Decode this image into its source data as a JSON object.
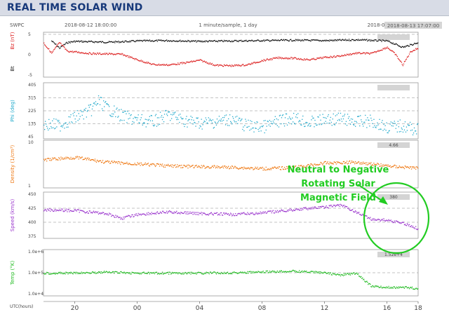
{
  "page": {
    "title": "REAL TIME SOLAR WIND"
  },
  "header": {
    "source": "SWPC",
    "start_time": "2018-08-12 18:00:00",
    "cadence": "1 minute/sample, 1 day",
    "end_time": "2018-08-13 18:00:00",
    "current_time": "2018-08-13 17:07:00"
  },
  "annotation": {
    "lines": [
      "Neutral to Negative",
      "Rotating Solar",
      "Magnetic Field"
    ],
    "color": "#22cc22"
  },
  "x_axis": {
    "label": "UTC(hours)",
    "ticks": [
      "20",
      "00",
      "04",
      "08",
      "12",
      "16",
      "18"
    ],
    "start_hour": 18,
    "end_hour": 42
  },
  "chart_data": [
    {
      "type": "scatter",
      "panel": "magnetic-field",
      "ylabels": [
        {
          "text": "Bz (nT)",
          "color": "#dd2222"
        },
        {
          "text": "Bt",
          "color": "#222222"
        }
      ],
      "yticks": [
        "5",
        "0",
        "-5"
      ],
      "ylim": [
        -5,
        5
      ],
      "current_value": "",
      "series": [
        {
          "color": "#111111",
          "x": [
            18.5,
            19,
            19.5,
            20,
            21,
            22,
            23,
            24,
            26,
            28,
            30,
            32,
            34,
            36,
            38,
            40,
            41,
            42
          ],
          "values": [
            3.6,
            1.8,
            3.2,
            3.5,
            3.4,
            3.3,
            3.4,
            3.6,
            3.7,
            3.5,
            3.6,
            3.7,
            3.8,
            3.7,
            3.9,
            3.6,
            2.0,
            3.2
          ]
        },
        {
          "color": "#dd2222",
          "x": [
            18,
            18.5,
            19,
            19.5,
            20,
            21,
            22,
            23,
            24,
            25,
            26,
            27,
            28,
            29,
            30,
            31,
            32,
            33,
            34,
            35,
            36,
            37,
            38,
            39,
            40,
            40.5,
            41,
            41.5,
            42
          ],
          "values": [
            3.0,
            0.5,
            3.2,
            1.0,
            0.8,
            0.4,
            0.3,
            0.2,
            -1.2,
            -2.4,
            -2.5,
            -2.0,
            -1.3,
            -2.6,
            -2.7,
            -2.5,
            -1.4,
            -0.7,
            -0.8,
            -1.2,
            -0.6,
            -0.2,
            0.5,
            0.4,
            2.0,
            0.3,
            -2.5,
            0.9,
            1.8
          ]
        }
      ]
    },
    {
      "type": "scatter",
      "panel": "phi",
      "ylabels": [
        {
          "text": "Phi (deg)",
          "color": "#22aacc"
        }
      ],
      "yticks": [
        "405",
        "315",
        "225",
        "135",
        "45"
      ],
      "ylim": [
        45,
        405
      ],
      "current_value": "",
      "series": [
        {
          "color": "#22aacc",
          "x": [
            18,
            19,
            20,
            21,
            21.5,
            22,
            23,
            24,
            25,
            26,
            27,
            28,
            29,
            30,
            31,
            32,
            33,
            34,
            35,
            36,
            37,
            38,
            39,
            40,
            41,
            42
          ],
          "values": [
            130,
            125,
            180,
            230,
            300,
            250,
            190,
            160,
            150,
            200,
            160,
            140,
            150,
            170,
            120,
            110,
            150,
            180,
            140,
            165,
            170,
            150,
            155,
            110,
            120,
            90
          ]
        }
      ]
    },
    {
      "type": "scatter",
      "panel": "density",
      "ylabels": [
        {
          "text": "Density (1/cm³)",
          "color": "#ee7711"
        }
      ],
      "yticks": [
        "10",
        "1"
      ],
      "ylim": [
        1,
        10
      ],
      "current_value": "4.66",
      "series": [
        {
          "color": "#ee7711",
          "x": [
            18,
            20,
            22,
            24,
            26,
            28,
            30,
            32,
            34,
            36,
            38,
            40,
            42
          ],
          "values": [
            6.5,
            7.0,
            6.0,
            5.6,
            5.2,
            5.0,
            4.9,
            4.6,
            4.8,
            5.8,
            6.0,
            5.2,
            4.7
          ]
        }
      ]
    },
    {
      "type": "scatter",
      "panel": "speed",
      "ylabels": [
        {
          "text": "Speed (km/s)",
          "color": "#9933cc"
        }
      ],
      "yticks": [
        "450",
        "425",
        "400",
        "375"
      ],
      "ylim": [
        365,
        450
      ],
      "current_value": "380",
      "series": [
        {
          "color": "#9933cc",
          "x": [
            18,
            20,
            22,
            23,
            24,
            26,
            28,
            30,
            32,
            34,
            35,
            36,
            37,
            38,
            39,
            40,
            41,
            42
          ],
          "values": [
            420,
            418,
            412,
            402,
            410,
            415,
            412,
            410,
            413,
            420,
            423,
            425,
            430,
            415,
            400,
            398,
            392,
            380
          ]
        }
      ]
    },
    {
      "type": "scatter",
      "panel": "temperature",
      "ylabels": [
        {
          "text": "Temp (°K)",
          "color": "#22bb22"
        }
      ],
      "yticks": [
        "1.0e+6",
        "1.0e+5",
        "1.0e+4"
      ],
      "ylim": [
        4,
        6
      ],
      "current_value": "1.52e+4",
      "series": [
        {
          "color": "#22bb22",
          "x": [
            18,
            20,
            22,
            24,
            26,
            28,
            30,
            32,
            34,
            36,
            37,
            38,
            39,
            40,
            41,
            42
          ],
          "values": [
            5.0,
            5.0,
            5.05,
            5.0,
            5.0,
            5.0,
            5.02,
            5.05,
            5.1,
            5.02,
            4.9,
            5.0,
            4.35,
            4.3,
            4.3,
            4.25
          ]
        }
      ]
    }
  ]
}
